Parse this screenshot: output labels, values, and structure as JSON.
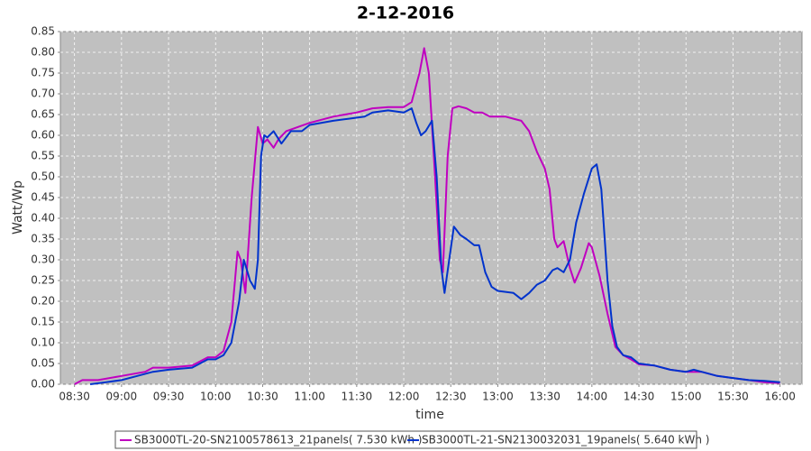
{
  "chart_data": {
    "type": "line",
    "title": "2-12-2016",
    "xlabel": "time",
    "ylabel": "Watt/Wp",
    "xlim": [
      "08:21",
      "16:14"
    ],
    "xticks": [
      "08:30",
      "09:00",
      "09:30",
      "10:00",
      "10:30",
      "11:00",
      "11:30",
      "12:00",
      "12:30",
      "13:00",
      "13:30",
      "14:00",
      "14:30",
      "15:00",
      "15:30",
      "16:00"
    ],
    "ylim": [
      0,
      0.85
    ],
    "yticks": [
      {
        "value": 0,
        "label": "0.00"
      },
      {
        "value": 0.05,
        "label": "0.05"
      },
      {
        "value": 0.1,
        "label": "0.10"
      },
      {
        "value": 0.15,
        "label": "0.15"
      },
      {
        "value": 0.2,
        "label": "0.20"
      },
      {
        "value": 0.25,
        "label": "0.25"
      },
      {
        "value": 0.3,
        "label": "0.30"
      },
      {
        "value": 0.35,
        "label": "0.35"
      },
      {
        "value": 0.4,
        "label": "0.40"
      },
      {
        "value": 0.45,
        "label": "0.45"
      },
      {
        "value": 0.5,
        "label": "0.50"
      },
      {
        "value": 0.55,
        "label": "0.55"
      },
      {
        "value": 0.6,
        "label": "0.60"
      },
      {
        "value": 0.65,
        "label": "0.65"
      },
      {
        "value": 0.7,
        "label": "0.70"
      },
      {
        "value": 0.75,
        "label": "0.75"
      },
      {
        "value": 0.8,
        "label": "0.80"
      },
      {
        "value": 0.85,
        "label": "0.85"
      }
    ],
    "grid": true,
    "legend": "bottom",
    "series": [
      {
        "name": "SB3000TL-20-SN2100578613_21panels( 7.530 kWh )",
        "color": "#c000c0",
        "x": [
          "08:30",
          "08:35",
          "08:45",
          "09:00",
          "09:15",
          "09:20",
          "09:30",
          "09:45",
          "09:55",
          "10:00",
          "10:05",
          "10:10",
          "10:14",
          "10:16",
          "10:19",
          "10:23",
          "10:27",
          "10:30",
          "10:33",
          "10:37",
          "10:40",
          "10:45",
          "11:00",
          "11:15",
          "11:30",
          "11:40",
          "11:50",
          "12:00",
          "12:05",
          "12:10",
          "12:13",
          "12:16",
          "12:20",
          "12:23",
          "12:25",
          "12:28",
          "12:31",
          "12:35",
          "12:40",
          "12:45",
          "12:50",
          "12:55",
          "13:00",
          "13:05",
          "13:10",
          "13:15",
          "13:20",
          "13:25",
          "13:30",
          "13:33",
          "13:36",
          "13:38",
          "13:42",
          "13:46",
          "13:49",
          "13:53",
          "13:58",
          "14:00",
          "14:05",
          "14:10",
          "14:15",
          "14:20",
          "14:25",
          "14:30",
          "14:40",
          "14:50",
          "15:00",
          "15:10",
          "15:20",
          "15:30",
          "15:40",
          "15:50",
          "16:00"
        ],
        "values": [
          0.0,
          0.01,
          0.01,
          0.02,
          0.03,
          0.04,
          0.04,
          0.045,
          0.065,
          0.065,
          0.08,
          0.15,
          0.32,
          0.3,
          0.22,
          0.45,
          0.62,
          0.58,
          0.59,
          0.57,
          0.59,
          0.61,
          0.63,
          0.645,
          0.655,
          0.665,
          0.668,
          0.668,
          0.68,
          0.75,
          0.81,
          0.75,
          0.5,
          0.3,
          0.27,
          0.55,
          0.665,
          0.67,
          0.665,
          0.655,
          0.655,
          0.645,
          0.645,
          0.645,
          0.64,
          0.635,
          0.61,
          0.56,
          0.52,
          0.47,
          0.35,
          0.33,
          0.345,
          0.28,
          0.245,
          0.28,
          0.34,
          0.33,
          0.26,
          0.17,
          0.09,
          0.07,
          0.06,
          0.048,
          0.045,
          0.035,
          0.03,
          0.03,
          0.02,
          0.015,
          0.01,
          0.005,
          0.003
        ]
      },
      {
        "name": "SB3000TL-21-SN2130032031_19panels( 5.640 kWh )",
        "color": "#0033cc",
        "x": [
          "08:40",
          "08:50",
          "09:00",
          "09:10",
          "09:20",
          "09:30",
          "09:45",
          "09:55",
          "10:00",
          "10:05",
          "10:10",
          "10:15",
          "10:18",
          "10:22",
          "10:25",
          "10:27",
          "10:29",
          "10:31",
          "10:33",
          "10:37",
          "10:42",
          "10:48",
          "10:55",
          "11:00",
          "11:15",
          "11:25",
          "11:35",
          "11:40",
          "11:50",
          "12:00",
          "12:05",
          "12:08",
          "12:11",
          "12:14",
          "12:18",
          "12:21",
          "12:24",
          "12:26",
          "12:29",
          "12:32",
          "12:36",
          "12:40",
          "12:45",
          "12:48",
          "12:52",
          "12:56",
          "13:00",
          "13:10",
          "13:15",
          "13:20",
          "13:25",
          "13:30",
          "13:35",
          "13:38",
          "13:42",
          "13:46",
          "13:50",
          "13:55",
          "14:00",
          "14:03",
          "14:06",
          "14:10",
          "14:13",
          "14:16",
          "14:20",
          "14:25",
          "14:30",
          "14:40",
          "14:50",
          "15:00",
          "15:05",
          "15:10",
          "15:20",
          "15:30",
          "15:40",
          "15:50",
          "16:00"
        ],
        "values": [
          0.0,
          0.005,
          0.01,
          0.02,
          0.03,
          0.035,
          0.04,
          0.06,
          0.06,
          0.07,
          0.1,
          0.2,
          0.3,
          0.25,
          0.23,
          0.3,
          0.55,
          0.6,
          0.595,
          0.61,
          0.58,
          0.61,
          0.61,
          0.625,
          0.635,
          0.64,
          0.645,
          0.655,
          0.66,
          0.655,
          0.665,
          0.63,
          0.6,
          0.61,
          0.635,
          0.5,
          0.28,
          0.22,
          0.3,
          0.38,
          0.36,
          0.35,
          0.335,
          0.335,
          0.27,
          0.235,
          0.225,
          0.22,
          0.205,
          0.22,
          0.24,
          0.25,
          0.275,
          0.28,
          0.27,
          0.3,
          0.39,
          0.46,
          0.52,
          0.53,
          0.47,
          0.25,
          0.14,
          0.09,
          0.07,
          0.065,
          0.05,
          0.045,
          0.035,
          0.03,
          0.035,
          0.03,
          0.02,
          0.015,
          0.01,
          0.008,
          0.005
        ]
      }
    ]
  }
}
